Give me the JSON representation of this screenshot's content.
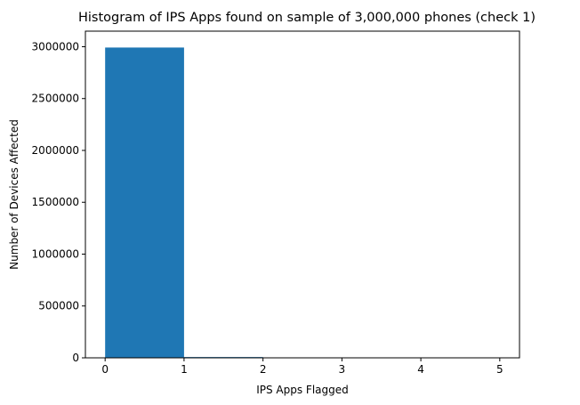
{
  "chart_data": {
    "type": "bar",
    "title": "Histogram of IPS Apps found on sample of 3,000,000 phones (check 1)",
    "xlabel": "IPS Apps Flagged",
    "ylabel": "Number of Devices Affected",
    "bins": [
      {
        "x0": 0,
        "x1": 1,
        "value": 2992000
      },
      {
        "x0": 1,
        "x1": 2,
        "value": 7500
      },
      {
        "x0": 2,
        "x1": 3,
        "value": 400
      },
      {
        "x0": 3,
        "x1": 4,
        "value": 50
      },
      {
        "x0": 4,
        "x1": 5,
        "value": 10
      }
    ],
    "xlim": [
      -0.25,
      5.25
    ],
    "ylim": [
      0,
      3150000
    ],
    "xticks": [
      0,
      1,
      2,
      3,
      4,
      5
    ],
    "yticks": [
      0,
      500000,
      1000000,
      1500000,
      2000000,
      2500000,
      3000000
    ],
    "xtick_labels": [
      "0",
      "1",
      "2",
      "3",
      "4",
      "5"
    ],
    "ytick_labels": [
      "0",
      "500000",
      "1000000",
      "1500000",
      "2000000",
      "2500000",
      "3000000"
    ],
    "bar_color": "#1f77b4",
    "grid": false,
    "legend": "none"
  }
}
